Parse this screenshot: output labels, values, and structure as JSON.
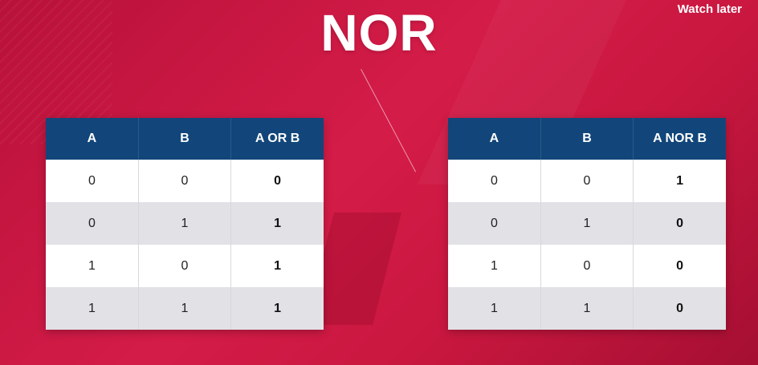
{
  "video": {
    "title": "NOR",
    "watch_later_label": "Watch later"
  },
  "or_table": {
    "headers": [
      "A",
      "B",
      "A OR B"
    ],
    "rows": [
      [
        "0",
        "0",
        "0"
      ],
      [
        "0",
        "1",
        "1"
      ],
      [
        "1",
        "0",
        "1"
      ],
      [
        "1",
        "1",
        "1"
      ]
    ]
  },
  "nor_table": {
    "headers": [
      "A",
      "B",
      "A NOR B"
    ],
    "rows": [
      [
        "0",
        "0",
        "1"
      ],
      [
        "0",
        "1",
        "0"
      ],
      [
        "1",
        "0",
        "0"
      ],
      [
        "1",
        "1",
        "0"
      ]
    ]
  },
  "colors": {
    "background": "#d41c48",
    "header": "#12467a",
    "row_light": "#ffffff",
    "row_dark": "#e1e1e6"
  }
}
